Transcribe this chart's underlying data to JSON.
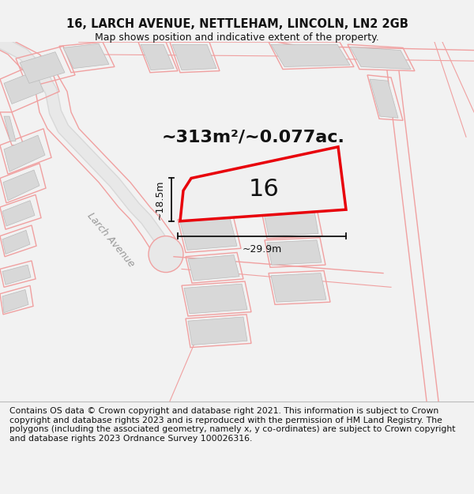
{
  "title": "16, LARCH AVENUE, NETTLEHAM, LINCOLN, LN2 2GB",
  "subtitle": "Map shows position and indicative extent of the property.",
  "area_text": "~313m²/~0.077ac.",
  "width_label": "~29.9m",
  "height_label": "~18.5m",
  "number_label": "16",
  "road_label": "Larch Avenue",
  "footer": "Contains OS data © Crown copyright and database right 2021. This information is subject to Crown copyright and database rights 2023 and is reproduced with the permission of HM Land Registry. The polygons (including the associated geometry, namely x, y co-ordinates) are subject to Crown copyright and database rights 2023 Ordnance Survey 100026316.",
  "bg_color": "#f2f2f2",
  "map_bg": "#ffffff",
  "red": "#e8000a",
  "gray_bld": "#d8d8d8",
  "pink": "#f0a0a0",
  "pink2": "#e8b0b0",
  "dim_black": "#111111",
  "road_gray": "#cccccc",
  "title_fontsize": 10.5,
  "subtitle_fontsize": 9,
  "footer_fontsize": 7.8,
  "area_fontsize": 16,
  "num_fontsize": 22,
  "dim_fontsize": 9,
  "road_label_fontsize": 9
}
